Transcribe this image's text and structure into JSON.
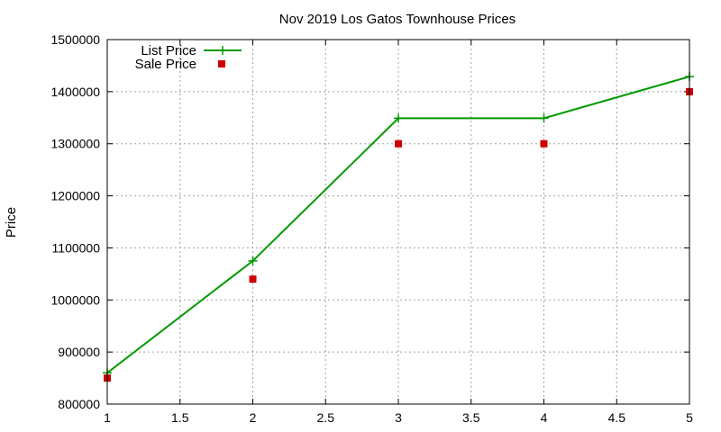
{
  "chart_data": {
    "type": "line",
    "title": "Nov 2019 Los Gatos Townhouse Prices",
    "xlabel": "",
    "ylabel": "Price",
    "xlim": [
      1,
      5
    ],
    "ylim": [
      800000,
      1500000
    ],
    "xticks": [
      1,
      1.5,
      2,
      2.5,
      3,
      3.5,
      4,
      4.5,
      5
    ],
    "yticks": [
      800000,
      900000,
      1000000,
      1100000,
      1200000,
      1300000,
      1400000,
      1500000
    ],
    "grid": true,
    "legend_position": "top-left",
    "series": [
      {
        "name": "List Price",
        "style": "line-with-plus-markers",
        "color": "#009900",
        "x": [
          1,
          2,
          3,
          4,
          5
        ],
        "y": [
          860000,
          1075000,
          1349000,
          1349000,
          1429000
        ]
      },
      {
        "name": "Sale Price",
        "style": "square-markers",
        "color": "#cc0000",
        "x": [
          1,
          2,
          3,
          4,
          5
        ],
        "y": [
          850000,
          1040000,
          1300000,
          1300000,
          1400000
        ]
      }
    ]
  }
}
